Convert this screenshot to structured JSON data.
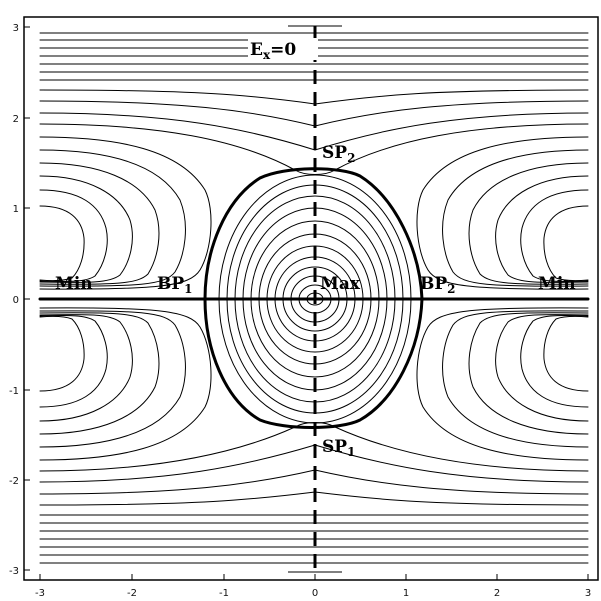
{
  "figure": {
    "title": "",
    "xlabel": "",
    "ylabel": "",
    "x_ticks": [
      "-3",
      "-2",
      "-1",
      "0",
      "1",
      "2",
      "3"
    ],
    "y_ticks": [
      "3",
      "2",
      "1",
      "0",
      "-1",
      "-2",
      "-3"
    ],
    "xlim": [
      -3.05,
      3.1
    ],
    "ylim": [
      -3.1,
      3.1
    ],
    "annotations": {
      "ex_zero": {
        "main": "E",
        "sub": "x",
        "rest": "=0"
      },
      "sp2": {
        "main": "SP",
        "sub": "2"
      },
      "sp1": {
        "main": "SP",
        "sub": "1"
      },
      "bp1": {
        "main": "BP",
        "sub": "1"
      },
      "bp2": {
        "main": "BP",
        "sub": "2"
      },
      "max": "Max",
      "min_left": "Min",
      "min_right": "Min"
    },
    "colors": {
      "lines": "#000000",
      "background": "#ffffff"
    }
  }
}
